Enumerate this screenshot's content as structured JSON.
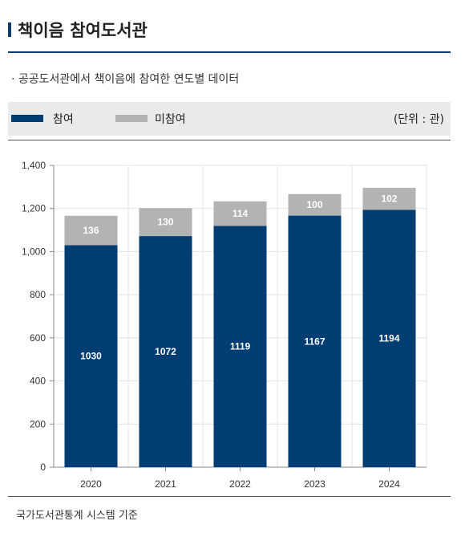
{
  "header": {
    "title": "책이음 참여도서관"
  },
  "subtitle": "· 공공도서관에서 책이음에 참여한 연도별 데이터",
  "legend": {
    "join_label": "참여",
    "non_label": "미참여",
    "unit": "(단위 : 관)"
  },
  "footer": {
    "source": "국가도서관통계 시스템 기준"
  },
  "colors": {
    "join": "#003d73",
    "non": "#b3b3b3",
    "accent": "#0a3c6e"
  },
  "chart_data": {
    "type": "bar",
    "stacked": true,
    "categories": [
      "2020",
      "2021",
      "2022",
      "2023",
      "2024"
    ],
    "series": [
      {
        "name": "참여",
        "values": [
          1030,
          1072,
          1119,
          1167,
          1194
        ]
      },
      {
        "name": "미참여",
        "values": [
          136,
          130,
          114,
          100,
          102
        ]
      }
    ],
    "ylim": [
      0,
      1400
    ],
    "yticks": [
      0,
      200,
      400,
      600,
      800,
      1000,
      1200,
      1400
    ],
    "ytick_labels": [
      "0",
      "200",
      "400",
      "600",
      "800",
      "1,000",
      "1,200",
      "1,400"
    ],
    "grid": true,
    "legend_position": "top"
  }
}
